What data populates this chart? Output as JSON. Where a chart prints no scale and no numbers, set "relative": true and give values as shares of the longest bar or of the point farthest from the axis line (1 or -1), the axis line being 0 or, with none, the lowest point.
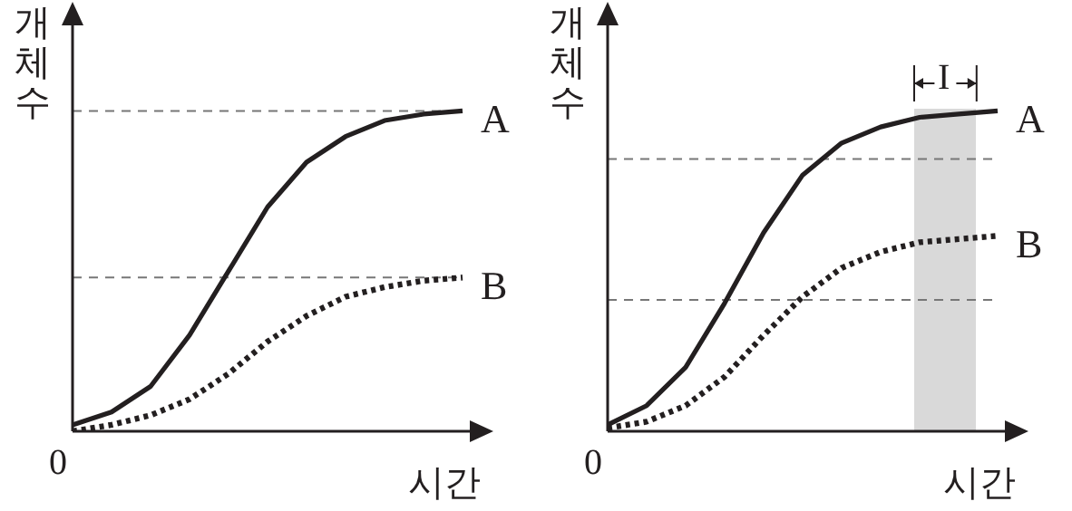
{
  "chart_data": [
    {
      "type": "line",
      "relative": true,
      "xlabel": "시간",
      "ylabel": "개체수",
      "annotations": [
        "0"
      ],
      "legend": "right",
      "marker": "none",
      "categories": [
        null,
        null,
        null,
        null,
        null,
        null,
        null,
        null,
        null,
        null,
        null
      ],
      "series": [
        {
          "name": "A",
          "color": "#231f20",
          "line_style": "solid",
          "values": [
            0.02,
            0.06,
            0.14,
            0.3,
            0.5,
            0.7,
            0.84,
            0.92,
            0.97,
            0.99,
            1.0
          ]
        },
        {
          "name": "B",
          "color": "#231f20",
          "line_style": "dotted",
          "values": [
            0,
            0.02,
            0.05,
            0.1,
            0.18,
            0.28,
            0.36,
            0.42,
            0.45,
            0.47,
            0.48
          ]
        }
      ],
      "ref_lines": [
        {
          "axis": "y",
          "value": 1.0,
          "color": "#777777",
          "line_style": "dashed"
        },
        {
          "axis": "y",
          "value": 0.48,
          "color": "#777777",
          "line_style": "dashed"
        }
      ]
    },
    {
      "type": "line",
      "relative": true,
      "xlabel": "시간",
      "ylabel": "개체수",
      "annotations": [
        "0",
        "I"
      ],
      "legend": "right",
      "marker": "none",
      "categories": [
        null,
        null,
        null,
        null,
        null,
        null,
        null,
        null,
        null,
        null,
        null
      ],
      "series": [
        {
          "name": "A",
          "color": "#231f20",
          "line_style": "solid",
          "values": [
            0.02,
            0.08,
            0.2,
            0.4,
            0.62,
            0.8,
            0.9,
            0.95,
            0.98,
            0.99,
            1.0
          ]
        },
        {
          "name": "B",
          "color": "#231f20",
          "line_style": "dotted",
          "values": [
            0.01,
            0.03,
            0.08,
            0.17,
            0.3,
            0.42,
            0.51,
            0.56,
            0.59,
            0.6,
            0.61
          ]
        }
      ],
      "ref_lines": [
        {
          "axis": "y",
          "value": 0.85,
          "color": "#777777",
          "line_style": "dashed"
        },
        {
          "axis": "y",
          "value": 0.41,
          "color": "#777777",
          "line_style": "dashed"
        }
      ]
    }
  ]
}
